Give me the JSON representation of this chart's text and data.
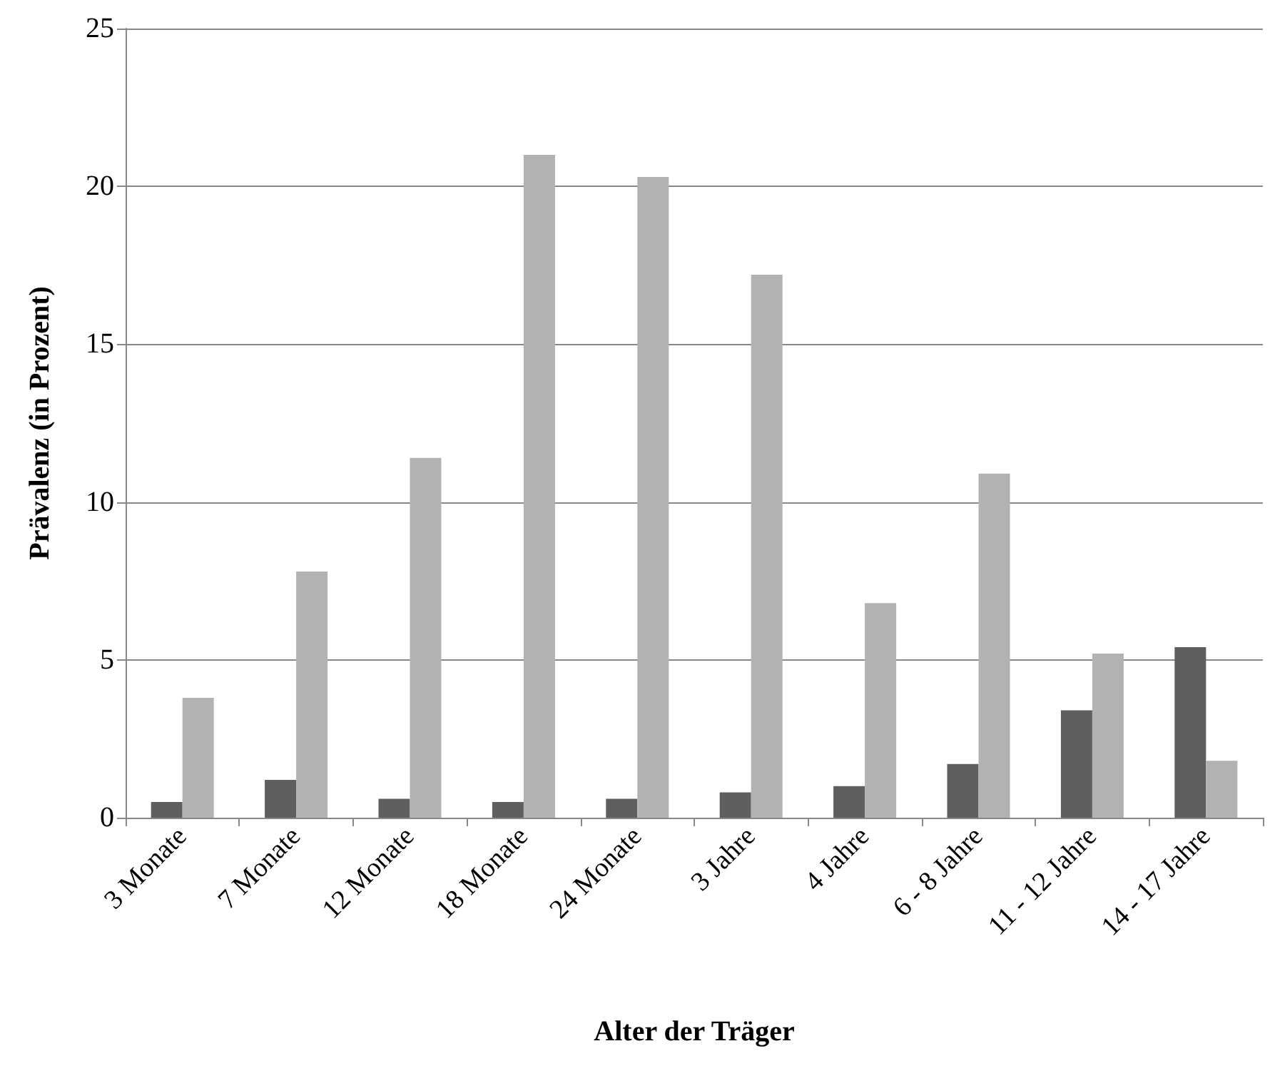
{
  "chart_data": {
    "type": "bar",
    "xlabel": "Alter der Träger",
    "ylabel": "Prävalenz (in Prozent)",
    "categories": [
      "3 Monate",
      "7 Monate",
      "12 Monate",
      "18 Monate",
      "24 Monate",
      "3 Jahre",
      "4 Jahre",
      "6 - 8 Jahre",
      "11 - 12 Jahre",
      "14 - 17 Jahre"
    ],
    "series": [
      {
        "color": "#5f5f5f",
        "values": [
          0.5,
          1.2,
          0.6,
          0.5,
          0.6,
          0.8,
          1.0,
          1.7,
          3.4,
          5.4
        ]
      },
      {
        "color": "#b2b2b2",
        "values": [
          3.8,
          7.8,
          11.4,
          21.0,
          20.3,
          17.2,
          6.8,
          10.9,
          5.2,
          1.8
        ]
      }
    ],
    "ylim": [
      0,
      25
    ],
    "yticks": [
      0,
      5,
      10,
      15,
      20,
      25
    ],
    "grid": "y"
  }
}
